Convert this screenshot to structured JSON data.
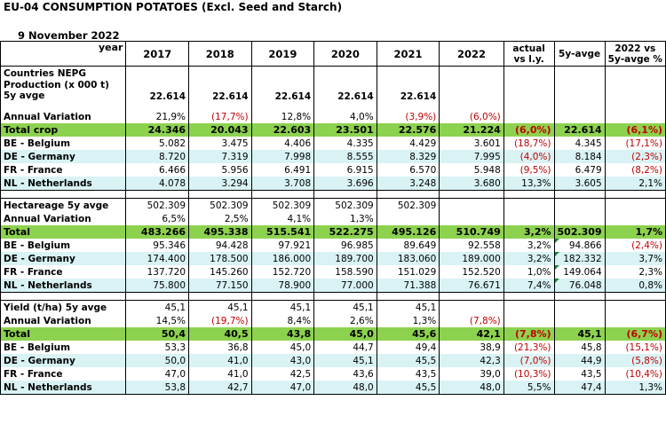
{
  "title": "EU-04 CONSUMPTION POTATOES (Excl. Seed and Starch)",
  "date": "9 November 2022",
  "header": {
    "year_label": "year",
    "years": [
      "2017",
      "2018",
      "2019",
      "2020",
      "2021",
      "2022"
    ],
    "actual_vs_ly": "actual vs l.y.",
    "five_y_avg": "5y-avge",
    "vs_5y_pct": "2022 vs 5y-avge %"
  },
  "rows": [
    {
      "label": "Countries NEPG",
      "vals": [
        "",
        "",
        "",
        "",
        "",
        "",
        "",
        "",
        ""
      ],
      "bold": true,
      "tall": false,
      "topline": true
    },
    {
      "label": "Production (x 000 t) 5y avge",
      "vals": [
        "22.614",
        "22.614",
        "22.614",
        "22.614",
        "22.614",
        "",
        "",
        "",
        ""
      ],
      "bold": true,
      "tall": true
    },
    {
      "label": "",
      "vals": [
        "",
        "",
        "",
        "",
        "",
        "",
        "",
        "",
        ""
      ],
      "gap": true
    },
    {
      "label": "Annual Variation",
      "vals": [
        "21,9%",
        "(17,7%)",
        "12,8%",
        "4,0%",
        "(3,9%)",
        "(6,0%)",
        "",
        "",
        ""
      ],
      "bold": false,
      "labelbold": true
    },
    {
      "label": "Total crop",
      "vals": [
        "24.346",
        "20.043",
        "22.603",
        "23.501",
        "22.576",
        "21.224",
        "(6,0%)",
        "22.614",
        "(6,1%)"
      ],
      "green": true
    },
    {
      "label": "BE - Belgium",
      "vals": [
        "5.082",
        "3.475",
        "4.406",
        "4.335",
        "4.429",
        "3.601",
        "(18,7%)",
        "4.345",
        "(17,1%)"
      ],
      "labelbold": true
    },
    {
      "label": "DE - Germany",
      "vals": [
        "8.720",
        "7.319",
        "7.998",
        "8.555",
        "8.329",
        "7.995",
        "(4,0%)",
        "8.184",
        "(2,3%)"
      ],
      "labelbold": true,
      "cyan": true
    },
    {
      "label": "FR - France",
      "vals": [
        "6.466",
        "5.956",
        "6.491",
        "6.915",
        "6.570",
        "5.948",
        "(9,5%)",
        "6.479",
        "(8,2%)"
      ],
      "labelbold": true
    },
    {
      "label": "NL - Netherlands",
      "vals": [
        "4.078",
        "3.294",
        "3.708",
        "3.696",
        "3.248",
        "3.680",
        "13,3%",
        "3.605",
        "2,1%"
      ],
      "labelbold": true,
      "cyan": true
    },
    {
      "label": "",
      "vals": [
        "",
        "",
        "",
        "",
        "",
        "",
        "",
        "",
        ""
      ],
      "gap": true,
      "topline": true
    },
    {
      "label": "Hectareage 5y avge",
      "vals": [
        "502.309",
        "502.309",
        "502.309",
        "502.309",
        "502.309",
        "",
        "",
        "",
        ""
      ],
      "labelbold": true,
      "topline": true
    },
    {
      "label": "Annual Variation",
      "vals": [
        "6,5%",
        "2,5%",
        "4,1%",
        "1,3%",
        "",
        "",
        "",
        "",
        ""
      ],
      "labelbold": true
    },
    {
      "label": "Total",
      "vals": [
        "483.266",
        "495.338",
        "515.541",
        "522.275",
        "495.126",
        "510.749",
        "3,2%",
        "502.309",
        "1,7%"
      ],
      "green": true
    },
    {
      "label": "BE - Belgium",
      "vals": [
        "95.346",
        "94.428",
        "97.921",
        "96.985",
        "89.649",
        "92.558",
        "3,2%",
        "94.866",
        "(2,4%)"
      ],
      "labelbold": true,
      "tri": true
    },
    {
      "label": "DE - Germany",
      "vals": [
        "174.400",
        "178.500",
        "186.000",
        "189.700",
        "183.060",
        "189.000",
        "3,2%",
        "182.332",
        "3,7%"
      ],
      "labelbold": true,
      "cyan": true,
      "tri": true
    },
    {
      "label": "FR - France",
      "vals": [
        "137.720",
        "145.260",
        "152.720",
        "158.590",
        "151.029",
        "152.520",
        "1,0%",
        "149.064",
        "2,3%"
      ],
      "labelbold": true,
      "tri": true
    },
    {
      "label": "NL - Netherlands",
      "vals": [
        "75.800",
        "77.150",
        "78.900",
        "77.000",
        "71.388",
        "76.671",
        "7,4%",
        "76.048",
        "0,8%"
      ],
      "labelbold": true,
      "cyan": true,
      "tri": true
    },
    {
      "label": "",
      "vals": [
        "",
        "",
        "",
        "",
        "",
        "",
        "",
        "",
        ""
      ],
      "gap": true,
      "topline": true
    },
    {
      "label": "Yield (t/ha) 5y avge",
      "vals": [
        "45,1",
        "45,1",
        "45,1",
        "45,1",
        "45,1",
        "",
        "",
        "",
        ""
      ],
      "labelbold": true,
      "topline": true
    },
    {
      "label": "Annual Variation",
      "vals": [
        "14,5%",
        "(19,7%)",
        "8,4%",
        "2,6%",
        "1,3%",
        "(7,8%)",
        "",
        "",
        ""
      ],
      "labelbold": true
    },
    {
      "label": "Total",
      "vals": [
        "50,4",
        "40,5",
        "43,8",
        "45,0",
        "45,6",
        "42,1",
        "(7,8%)",
        "45,1",
        "(6,7%)"
      ],
      "green": true
    },
    {
      "label": "BE - Belgium",
      "vals": [
        "53,3",
        "36,8",
        "45,0",
        "44,7",
        "49,4",
        "38,9",
        "(21,3%)",
        "45,8",
        "(15,1%)"
      ],
      "labelbold": true
    },
    {
      "label": "DE - Germany",
      "vals": [
        "50,0",
        "41,0",
        "43,0",
        "45,1",
        "45,5",
        "42,3",
        "(7,0%)",
        "44,9",
        "(5,8%)"
      ],
      "labelbold": true,
      "cyan": true
    },
    {
      "label": "FR - France",
      "vals": [
        "47,0",
        "41,0",
        "42,5",
        "43,6",
        "43,5",
        "39,0",
        "(10,3%)",
        "43,5",
        "(10,4%)"
      ],
      "labelbold": true
    },
    {
      "label": "NL - Netherlands",
      "vals": [
        "53,8",
        "42,7",
        "47,0",
        "48,0",
        "45,5",
        "48,0",
        "5,5%",
        "47,4",
        "1,3%"
      ],
      "labelbold": true,
      "cyan": true,
      "botline": true
    }
  ]
}
